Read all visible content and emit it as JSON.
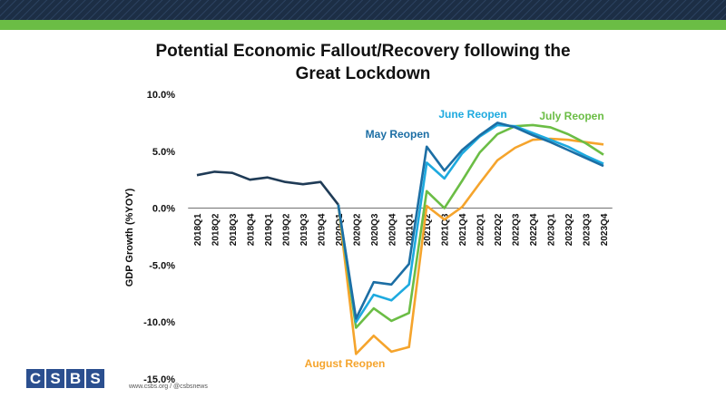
{
  "colors": {
    "header_band": "#1c2e45",
    "header_green": "#6bbd45",
    "historical": "#1f3b56",
    "may": "#1c6ea4",
    "june": "#1eaadf",
    "july": "#6bbd45",
    "august": "#f5a42c",
    "logo": "#2b4f8f"
  },
  "footer": {
    "logo_letters": [
      "C",
      "S",
      "B",
      "S"
    ],
    "url": "www.csbs.org  /  @csbsnews"
  },
  "chart_data": {
    "type": "line",
    "title": "Potential Economic Fallout/Recovery following the Great Lockdown",
    "title_lines": [
      "Potential Economic Fallout/Recovery following the",
      "Great Lockdown"
    ],
    "xlabel": "",
    "ylabel": "GDP Growth (%YOY)",
    "ylim": [
      -15,
      10
    ],
    "yticks": [
      10,
      5,
      0,
      -5,
      -10,
      -15
    ],
    "ytick_labels": [
      "10.0%",
      "5.0%",
      "0.0%",
      "-5.0%",
      "-10.0%",
      "-15.0%"
    ],
    "grid": false,
    "legend": "none",
    "categories": [
      "2018Q1",
      "2018Q2",
      "2018Q3",
      "2018Q4",
      "2019Q1",
      "2019Q2",
      "2019Q3",
      "2019Q4",
      "2020Q1",
      "2020Q2",
      "2020Q3",
      "2020Q4",
      "2021Q1",
      "2021Q2",
      "2021Q3",
      "2021Q4",
      "2022Q1",
      "2022Q2",
      "2022Q3",
      "2022Q4",
      "2023Q1",
      "2023Q2",
      "2023Q3",
      "2023Q4"
    ],
    "series": [
      {
        "key": "historical",
        "values": [
          2.9,
          3.2,
          3.1,
          2.5,
          2.7,
          2.3,
          2.1,
          2.3,
          0.3,
          null,
          null,
          null,
          null,
          null,
          null,
          null,
          null,
          null,
          null,
          null,
          null,
          null,
          null,
          null
        ]
      },
      {
        "key": "august",
        "name": "August Reopen",
        "values": [
          null,
          null,
          null,
          null,
          null,
          null,
          null,
          null,
          0.3,
          -12.8,
          -11.2,
          -12.6,
          -12.2,
          0.2,
          -1.0,
          0.1,
          2.2,
          4.2,
          5.3,
          6.0,
          6.1,
          6.0,
          5.8,
          5.6
        ]
      },
      {
        "key": "july",
        "name": "July Reopen",
        "values": [
          null,
          null,
          null,
          null,
          null,
          null,
          null,
          null,
          0.3,
          -10.5,
          -8.8,
          -9.9,
          -9.2,
          1.5,
          0.0,
          2.4,
          4.9,
          6.5,
          7.2,
          7.3,
          7.1,
          6.5,
          5.7,
          4.7
        ]
      },
      {
        "key": "june",
        "name": "June Reopen",
        "values": [
          null,
          null,
          null,
          null,
          null,
          null,
          null,
          null,
          0.3,
          -10.0,
          -7.6,
          -8.1,
          -6.7,
          4.0,
          2.6,
          4.8,
          6.3,
          7.3,
          7.2,
          6.6,
          6.0,
          5.4,
          4.6,
          3.9
        ]
      },
      {
        "key": "may",
        "name": "May Reopen",
        "values": [
          null,
          null,
          null,
          null,
          null,
          null,
          null,
          null,
          0.3,
          -9.7,
          -6.5,
          -6.7,
          -4.9,
          5.4,
          3.3,
          5.1,
          6.4,
          7.5,
          7.1,
          6.4,
          5.8,
          5.1,
          4.4,
          3.7
        ]
      }
    ],
    "annotations": [
      {
        "series": "may",
        "text": "May Reopen"
      },
      {
        "series": "june",
        "text": "June Reopen"
      },
      {
        "series": "july",
        "text": "July Reopen"
      },
      {
        "series": "august",
        "text": "August Reopen"
      }
    ]
  }
}
